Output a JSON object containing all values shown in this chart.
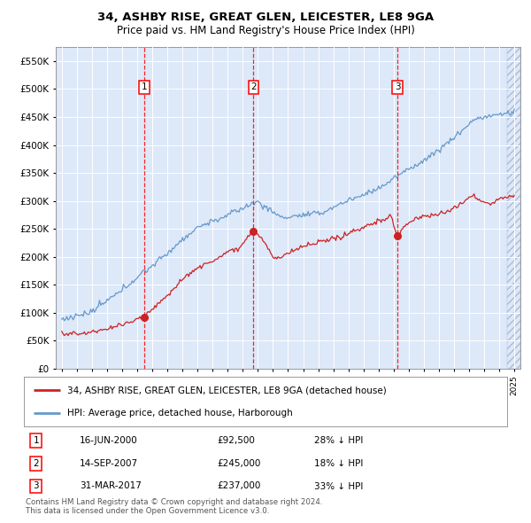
{
  "title1": "34, ASHBY RISE, GREAT GLEN, LEICESTER, LE8 9GA",
  "title2": "Price paid vs. HM Land Registry's House Price Index (HPI)",
  "plot_bg": "#dde8f8",
  "hpi_color": "#6699cc",
  "price_color": "#cc2222",
  "transactions": [
    {
      "num": 1,
      "date": "16-JUN-2000",
      "price": 92500,
      "pct": "28%",
      "x_year": 2000.46
    },
    {
      "num": 2,
      "date": "14-SEP-2007",
      "price": 245000,
      "pct": "18%",
      "x_year": 2007.71
    },
    {
      "num": 3,
      "date": "31-MAR-2017",
      "price": 237000,
      "pct": "33%",
      "x_year": 2017.25
    }
  ],
  "legend_line1": "34, ASHBY RISE, GREAT GLEN, LEICESTER, LE8 9GA (detached house)",
  "legend_line2": "HPI: Average price, detached house, Harborough",
  "footer1": "Contains HM Land Registry data © Crown copyright and database right 2024.",
  "footer2": "This data is licensed under the Open Government Licence v3.0.",
  "ylim": [
    0,
    575000
  ],
  "yticks": [
    0,
    50000,
    100000,
    150000,
    200000,
    250000,
    300000,
    350000,
    400000,
    450000,
    500000,
    550000
  ],
  "xmin": 1994.6,
  "xmax": 2025.4
}
